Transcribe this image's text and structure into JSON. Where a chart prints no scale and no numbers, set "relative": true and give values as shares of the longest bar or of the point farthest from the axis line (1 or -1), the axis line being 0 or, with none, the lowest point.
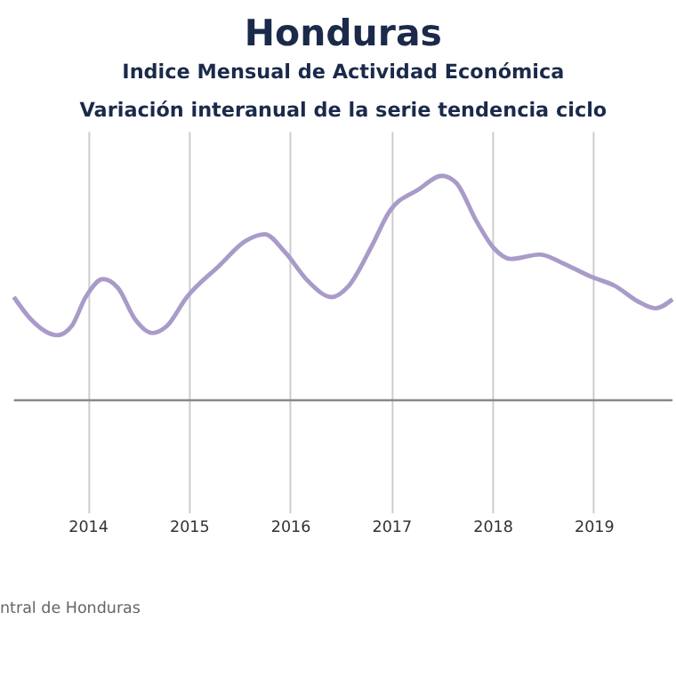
{
  "chart_data": {
    "type": "line",
    "title": "Honduras",
    "subtitle": "Indice Mensual de  Actividad Económica\nVariación interanual de la serie tendencia ciclo",
    "relative": true,
    "x": [
      2013.27,
      2013.44,
      2013.7,
      2013.84,
      2013.98,
      2014.15,
      2014.3,
      2014.47,
      2014.64,
      2014.78,
      2014.98,
      2015.3,
      2015.56,
      2015.75,
      2015.95,
      2016.18,
      2016.41,
      2016.58,
      2016.81,
      2016.98,
      2017.27,
      2017.5,
      2017.64,
      2017.84,
      2018.01,
      2018.18,
      2018.47,
      2018.7,
      2018.98,
      2019.21,
      2019.44,
      2019.61,
      2019.78
    ],
    "series": [
      {
        "color": "#a99bc9",
        "values": [
          0.46,
          0.36,
          0.29,
          0.33,
          0.46,
          0.54,
          0.5,
          0.36,
          0.3,
          0.33,
          0.46,
          0.6,
          0.71,
          0.74,
          0.66,
          0.53,
          0.46,
          0.51,
          0.69,
          0.84,
          0.94,
          1,
          0.97,
          0.8,
          0.68,
          0.63,
          0.65,
          0.61,
          0.55,
          0.51,
          0.44,
          0.41,
          0.45
        ]
      }
    ],
    "xlim": [
      2013.27,
      2019.78
    ],
    "xticks": [
      2014,
      2015,
      2016,
      2017,
      2018,
      2019
    ],
    "grid": true,
    "legend": false,
    "marker": "none",
    "line_style": "solid",
    "annotations": [
      "ntral de Honduras"
    ]
  }
}
